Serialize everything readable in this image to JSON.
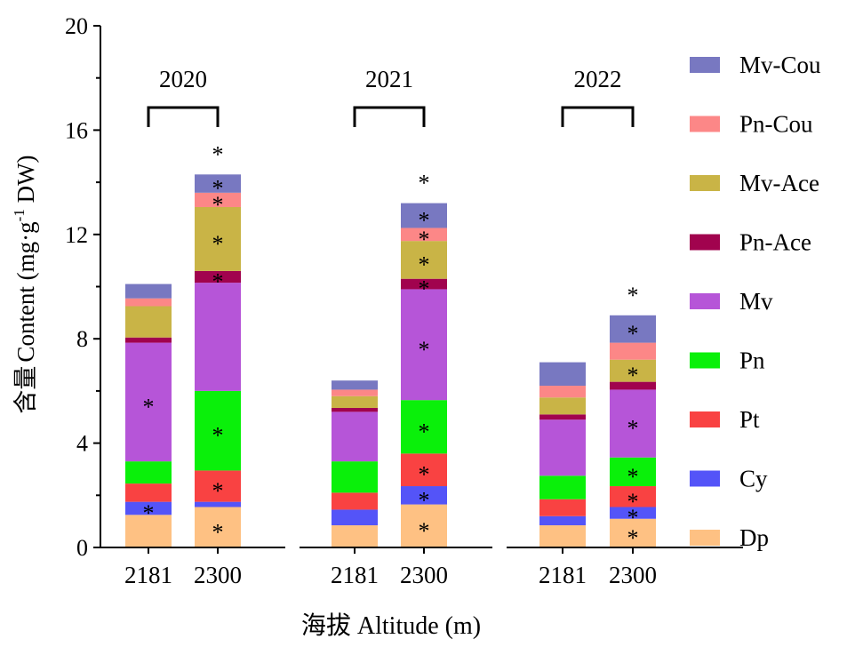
{
  "chart_data": {
    "type": "bar",
    "stacked": true,
    "ylabel_cn": "含量",
    "ylabel_en": "Content (mg·g",
    "ylabel_sup": "-1",
    "ylabel_unit": " DW)",
    "xlabel": "海拔 Altitude (m)",
    "ylim": [
      0,
      20
    ],
    "yticks": [
      "0",
      "4",
      "8",
      "12",
      "16",
      "20"
    ],
    "grid": false,
    "legend_position": "right",
    "groups": [
      {
        "year": "2020",
        "bars": [
          {
            "altitude": "2181",
            "values": [
              1.25,
              0.5,
              0.7,
              0.85,
              4.55,
              0.2,
              1.2,
              0.3,
              0.55
            ],
            "stars": [
              false,
              true,
              false,
              false,
              true,
              false,
              false,
              false,
              false
            ],
            "top_star": false
          },
          {
            "altitude": "2300",
            "values": [
              1.55,
              0.2,
              1.2,
              3.05,
              4.15,
              0.45,
              2.45,
              0.55,
              0.7
            ],
            "stars": [
              true,
              false,
              true,
              true,
              false,
              true,
              true,
              true,
              true
            ],
            "top_star": true
          }
        ]
      },
      {
        "year": "2021",
        "bars": [
          {
            "altitude": "2181",
            "values": [
              0.85,
              0.6,
              0.65,
              1.2,
              1.9,
              0.15,
              0.45,
              0.25,
              0.35
            ],
            "stars": [
              false,
              false,
              false,
              false,
              false,
              false,
              false,
              false,
              false
            ],
            "top_star": false
          },
          {
            "altitude": "2300",
            "values": [
              1.65,
              0.7,
              1.25,
              2.05,
              4.25,
              0.4,
              1.45,
              0.5,
              0.95
            ],
            "stars": [
              true,
              true,
              true,
              true,
              true,
              true,
              true,
              true,
              true
            ],
            "top_star": true
          }
        ]
      },
      {
        "year": "2022",
        "bars": [
          {
            "altitude": "2181",
            "values": [
              0.85,
              0.35,
              0.65,
              0.9,
              2.15,
              0.2,
              0.65,
              0.45,
              0.9
            ],
            "stars": [
              false,
              false,
              false,
              false,
              false,
              false,
              false,
              false,
              false
            ],
            "top_star": false
          },
          {
            "altitude": "2300",
            "values": [
              1.1,
              0.45,
              0.8,
              1.1,
              2.6,
              0.3,
              0.85,
              0.65,
              1.05
            ],
            "stars": [
              true,
              true,
              true,
              true,
              true,
              false,
              true,
              false,
              true
            ],
            "top_star": true
          }
        ]
      }
    ],
    "series": [
      {
        "name": "Dp",
        "color": "#FEC183"
      },
      {
        "name": "Cy",
        "color": "#5454F8"
      },
      {
        "name": "Pt",
        "color": "#F94242"
      },
      {
        "name": "Pn",
        "color": "#0AF00A"
      },
      {
        "name": "Mv",
        "color": "#B655D8"
      },
      {
        "name": "Pn-Ace",
        "color": "#A1034E"
      },
      {
        "name": "Mv-Ace",
        "color": "#C9B446"
      },
      {
        "name": "Pn-Cou",
        "color": "#FC8787"
      },
      {
        "name": "Mv-Cou",
        "color": "#7878C1"
      }
    ],
    "star_symbol": "*"
  }
}
